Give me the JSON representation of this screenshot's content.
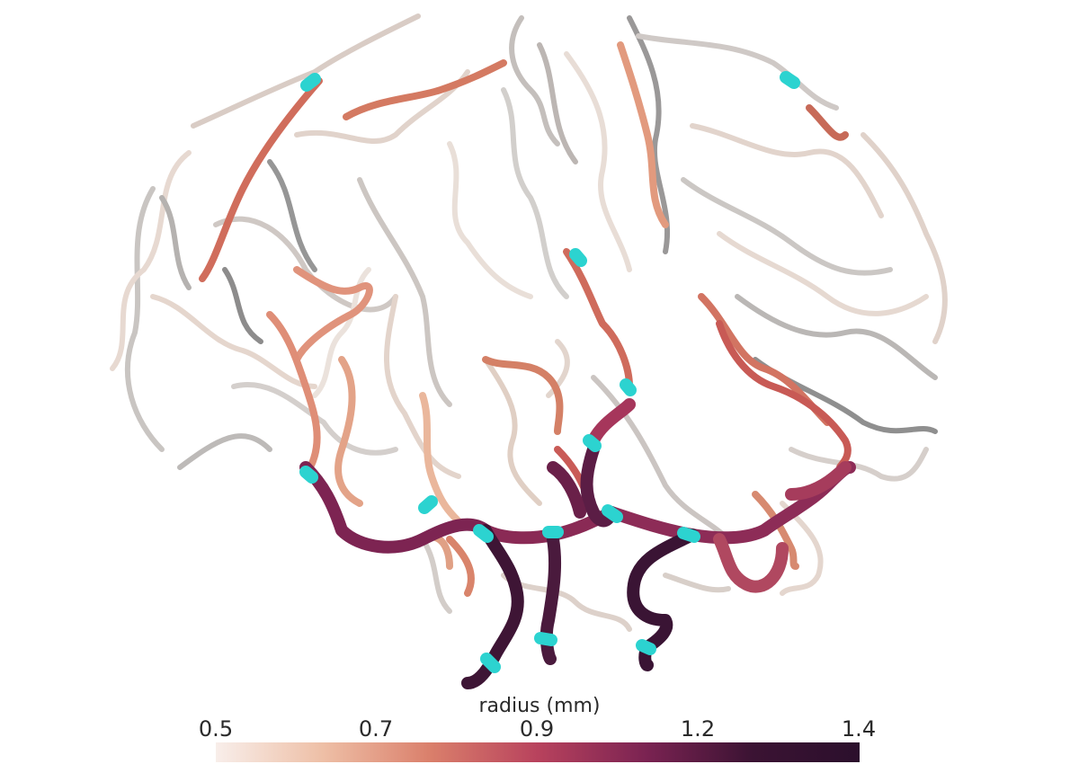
{
  "colorbar": {
    "title": "radius (mm)",
    "ticks": [
      "0.5",
      "0.7",
      "0.9",
      "1.2",
      "1.4"
    ],
    "range": [
      0.5,
      1.4
    ],
    "colormap": "rocket_r",
    "stops": [
      "#f8eeea",
      "#eebfa6",
      "#da7f6b",
      "#b8425d",
      "#7b2352",
      "#3b1333",
      "#2b0f2c"
    ]
  },
  "scene": {
    "description_color_gray_vessels": "#8a8a8a",
    "marker_color": "#2cd3d0"
  }
}
